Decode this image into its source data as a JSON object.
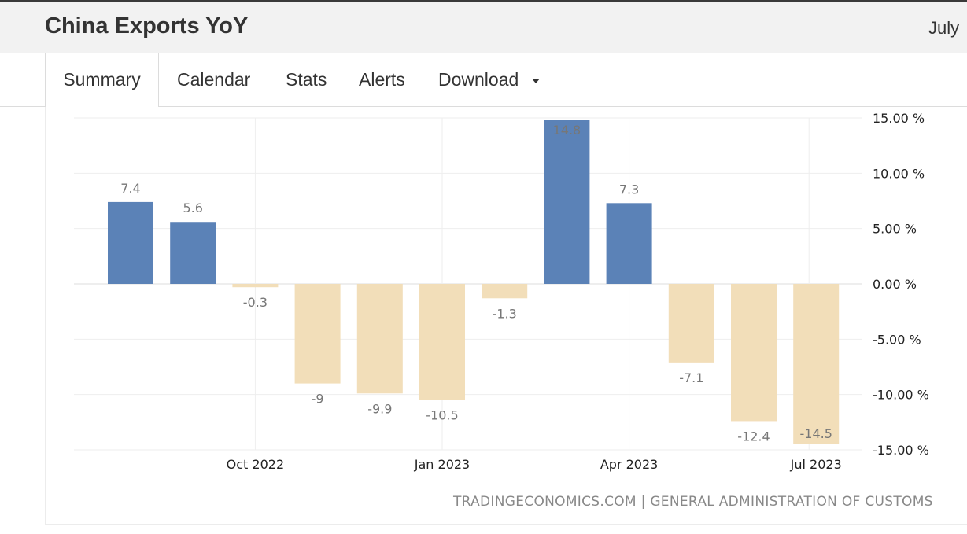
{
  "header": {
    "title": "China Exports YoY",
    "date": "July"
  },
  "tabs": [
    {
      "label": "Summary",
      "active": true
    },
    {
      "label": "Calendar",
      "active": false
    },
    {
      "label": "Stats",
      "active": false
    },
    {
      "label": "Alerts",
      "active": false
    },
    {
      "label": "Download",
      "active": false
    }
  ],
  "colors": {
    "positive_bar": "#5b82b7",
    "negative_bar": "#f2deb9",
    "gridline": "#eeeeee",
    "zero_line": "#dddddd"
  },
  "chart_data": {
    "type": "bar",
    "title": "China Exports YoY",
    "xlabel": "",
    "ylabel": "",
    "categories": [
      "Aug 2022",
      "Sep 2022",
      "Oct 2022",
      "Nov 2022",
      "Dec 2022",
      "Jan 2023",
      "Feb 2023",
      "Mar 2023",
      "Apr 2023",
      "May 2023",
      "Jun 2023",
      "Jul 2023"
    ],
    "values": [
      7.4,
      5.6,
      -0.3,
      -9,
      -9.9,
      -10.5,
      -1.3,
      14.8,
      7.3,
      -7.1,
      -12.4,
      -14.5
    ],
    "data_labels": [
      "7.4",
      "5.6",
      "-0.3",
      "-9",
      "-9.9",
      "-10.5",
      "-1.3",
      "14.8",
      "7.3",
      "-7.1",
      "-12.4",
      "-14.5"
    ],
    "x_tick_labels": [
      "Oct 2022",
      "Jan 2023",
      "Apr 2023",
      "Jul 2023"
    ],
    "y_tick_values": [
      15,
      10,
      5,
      0,
      -5,
      -10,
      -15
    ],
    "y_tick_labels": [
      "15.00 %",
      "10.00 %",
      "5.00 %",
      "0.00 %",
      "-5.00 %",
      "-10.00 %",
      "-15.00 %"
    ],
    "ylim": [
      -15,
      15
    ],
    "grid": true,
    "y_axis_side": "right"
  },
  "source": "TRADINGECONOMICS.COM  |  GENERAL ADMINISTRATION OF CUSTOMS"
}
